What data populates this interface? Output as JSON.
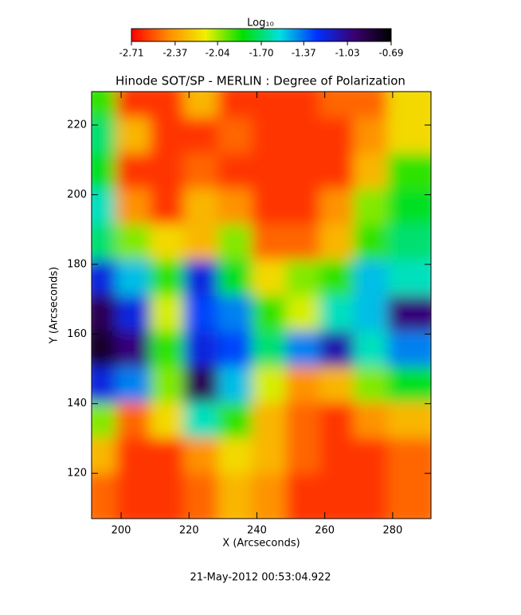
{
  "chart_data": {
    "type": "heatmap",
    "title": "Hinode SOT/SP - MERLIN : Degree of Polarization",
    "x_label": "X (Arcseconds)",
    "y_label": "Y (Arcseconds)",
    "footer": "21-May-2012 00:53:04.922",
    "colorbar_label": "Log₁₀",
    "colorbar_lim": [
      -2.71,
      -0.69
    ],
    "colorbar_ticks": [
      -2.71,
      -2.37,
      -2.04,
      {
        "value": -1.7,
        "label": "-1.70"
      },
      -1.37,
      -1.03,
      -0.69
    ],
    "colormap": [
      "#ff0000",
      "#ff8c00",
      "#f0f000",
      "#00e000",
      "#00e0e0",
      "#0030ff",
      "#3a0070",
      "#000000"
    ],
    "xlim": [
      191.3,
      291.3
    ],
    "ylim": [
      107.0,
      229.6
    ],
    "xticks": [
      200,
      220,
      240,
      260,
      280
    ],
    "yticks": [
      120,
      140,
      160,
      180,
      200,
      220
    ],
    "z": [
      [
        -1.9,
        -2.6,
        -2.6,
        -2.3,
        -2.6,
        -2.6,
        -2.6,
        -2.5,
        -2.5,
        -2.2
      ],
      [
        -1.7,
        -2.3,
        -2.6,
        -2.6,
        -2.5,
        -2.6,
        -2.6,
        -2.6,
        -2.4,
        -2.2
      ],
      [
        -1.8,
        -2.6,
        -2.6,
        -2.5,
        -2.6,
        -2.6,
        -2.6,
        -2.6,
        -2.3,
        -1.9
      ],
      [
        -1.6,
        -2.4,
        -2.6,
        -2.3,
        -2.4,
        -2.6,
        -2.6,
        -2.4,
        -2.0,
        -1.8
      ],
      [
        -1.7,
        -2.0,
        -2.2,
        -2.3,
        -2.0,
        -2.5,
        -2.5,
        -2.3,
        -1.9,
        -1.7
      ],
      [
        -1.2,
        -1.5,
        -1.9,
        -1.2,
        -1.8,
        -2.2,
        -2.0,
        -1.9,
        -1.5,
        -1.6
      ],
      [
        -0.9,
        -1.2,
        -2.1,
        -1.3,
        -1.4,
        -1.9,
        -2.1,
        -1.6,
        -1.5,
        -1.0
      ],
      [
        -0.8,
        -1.0,
        -1.9,
        -1.2,
        -1.3,
        -1.7,
        -1.4,
        -1.1,
        -1.6,
        -1.4
      ],
      [
        -1.2,
        -1.4,
        -2.0,
        -0.9,
        -1.5,
        -2.1,
        -2.4,
        -2.3,
        -2.0,
        -1.8
      ],
      [
        -2.0,
        -2.5,
        -2.2,
        -1.6,
        -1.9,
        -2.3,
        -2.5,
        -2.6,
        -2.4,
        -2.3
      ],
      [
        -2.3,
        -2.6,
        -2.6,
        -2.4,
        -2.2,
        -2.3,
        -2.5,
        -2.6,
        -2.6,
        -2.5
      ],
      [
        -2.5,
        -2.6,
        -2.6,
        -2.5,
        -2.3,
        -2.4,
        -2.6,
        -2.6,
        -2.6,
        -2.5
      ]
    ]
  }
}
